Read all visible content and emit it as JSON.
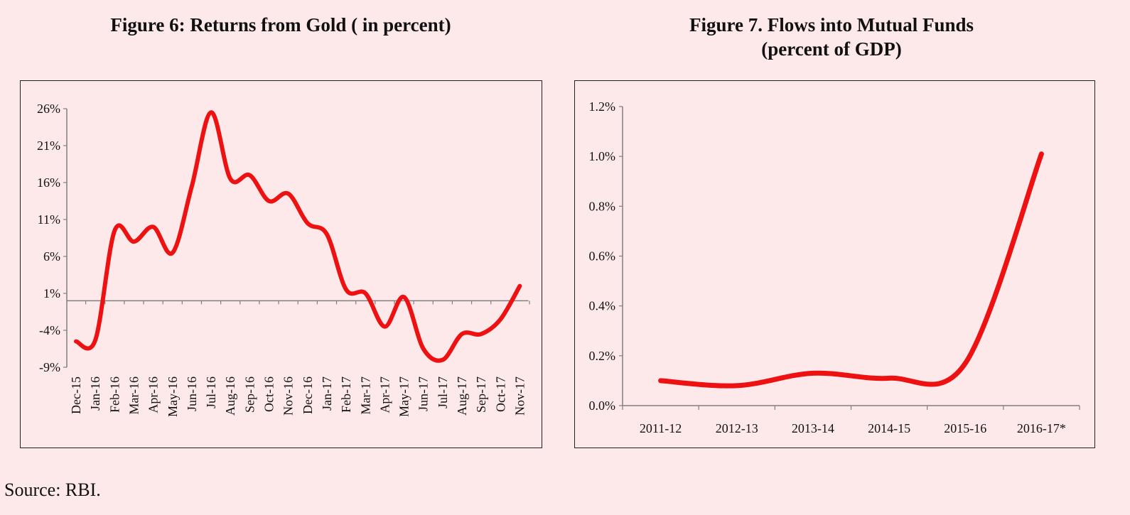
{
  "charts": {
    "fig6_title": "Figure 6: Returns from Gold  ( in percent)",
    "fig7_title_line1": "Figure 7. Flows into Mutual Funds",
    "fig7_title_line2": "(percent of  GDP)"
  },
  "source": "Source: RBI.",
  "colors": {
    "line": "#ee1111",
    "axis": "#808080",
    "background": "#fde9ea"
  },
  "chart_data": [
    {
      "type": "line",
      "title": "Figure 6: Returns from Gold  ( in percent)",
      "xlabel": "",
      "ylabel": "",
      "categories": [
        "Dec-15",
        "Jan-16",
        "Feb-16",
        "Mar-16",
        "Apr-16",
        "May-16",
        "Jun-16",
        "Jul-16",
        "Aug-16",
        "Sep-16",
        "Oct-16",
        "Nov-16",
        "Dec-16",
        "Jan-17",
        "Feb-17",
        "Mar-17",
        "Apr-17",
        "May-17",
        "Jun-17",
        "Jul-17",
        "Aug-17",
        "Sep-17",
        "Oct-17",
        "Nov-17"
      ],
      "series": [
        {
          "values": [
            -5.5,
            -5.3,
            9.5,
            8.0,
            10.0,
            6.5,
            15.5,
            25.5,
            16.5,
            17.0,
            13.5,
            14.5,
            10.5,
            9.0,
            1.5,
            1.0,
            -3.5,
            0.5,
            -6.5,
            -8.0,
            -4.5,
            -4.5,
            -2.5,
            2.0
          ]
        }
      ],
      "yticks": [
        "26%",
        "21%",
        "16%",
        "11%",
        "6%",
        "1%",
        "-4%",
        "-9%"
      ],
      "ylim": [
        -9,
        26
      ],
      "baseline": 0,
      "grid": false
    },
    {
      "type": "line",
      "title": "Figure 7. Flows into Mutual Funds (percent of  GDP)",
      "xlabel": "",
      "ylabel": "",
      "categories": [
        "2011-12",
        "2012-13",
        "2013-14",
        "2014-15",
        "2015-16",
        "2016-17*"
      ],
      "series": [
        {
          "values": [
            0.1,
            0.08,
            0.13,
            0.11,
            0.17,
            1.01
          ]
        }
      ],
      "yticks": [
        "1.2%",
        "1.0%",
        "0.8%",
        "0.6%",
        "0.4%",
        "0.2%",
        "0.0%"
      ],
      "ylim": [
        0,
        1.2
      ],
      "grid": false
    }
  ]
}
